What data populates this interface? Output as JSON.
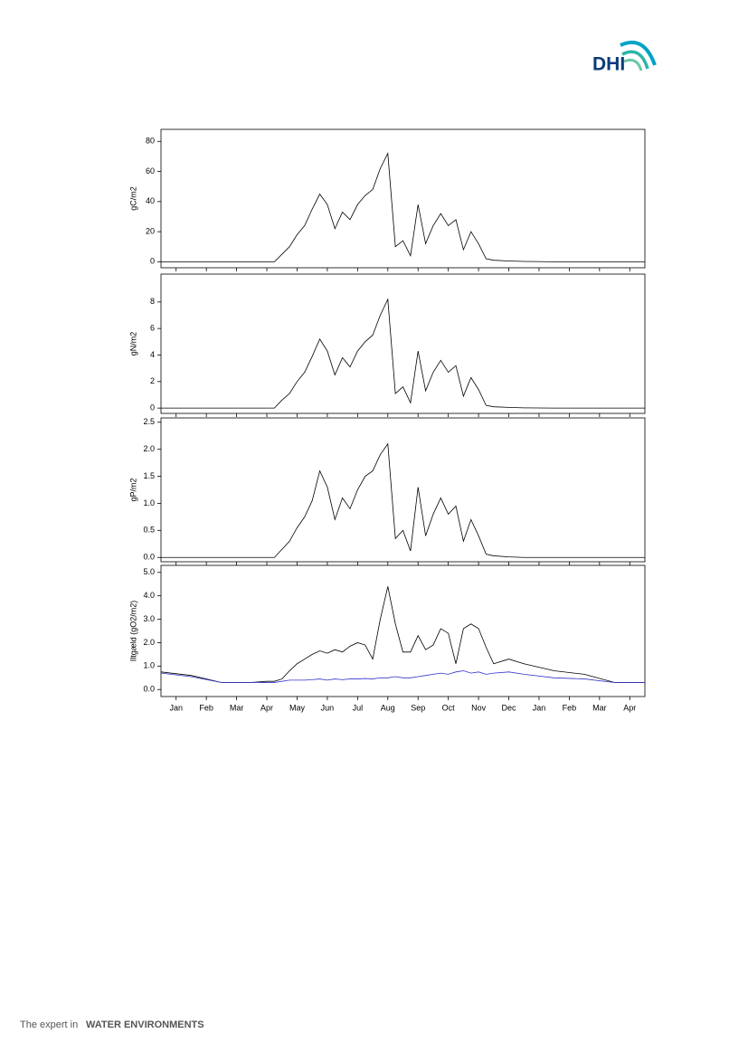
{
  "header": {
    "logo": "DHI"
  },
  "chart_data": [
    {
      "type": "line",
      "ylabel": "gC/m2",
      "color": "#000000",
      "x": [
        0,
        1,
        2,
        3,
        3.5,
        3.75,
        4,
        4.25,
        4.5,
        4.75,
        5,
        5.25,
        5.5,
        5.75,
        6,
        6.25,
        6.5,
        6.75,
        7,
        7.25,
        7.5,
        7.75,
        8,
        8.25,
        8.5,
        8.75,
        9,
        9.25,
        9.5,
        9.75,
        10,
        10.25,
        10.5,
        10.75,
        11,
        11.5,
        12,
        13,
        14,
        15,
        16
      ],
      "values": [
        0,
        0,
        0,
        0,
        0,
        0,
        5,
        10,
        18,
        24,
        35,
        45,
        38,
        22,
        33,
        28,
        38,
        44,
        48,
        62,
        72,
        10,
        14,
        4,
        38,
        12,
        24,
        32,
        24,
        28,
        8,
        20,
        12,
        2,
        1,
        0.5,
        0.2,
        0,
        0,
        0,
        0
      ],
      "xlim": [
        0,
        16
      ],
      "ylim": [
        -4,
        88
      ],
      "yticks": [
        0,
        20,
        40,
        60,
        80
      ]
    },
    {
      "type": "line",
      "ylabel": "gN/m2",
      "color": "#000000",
      "x": [
        0,
        1,
        2,
        3,
        3.5,
        3.75,
        4,
        4.25,
        4.5,
        4.75,
        5,
        5.25,
        5.5,
        5.75,
        6,
        6.25,
        6.5,
        6.75,
        7,
        7.25,
        7.5,
        7.75,
        8,
        8.25,
        8.5,
        8.75,
        9,
        9.25,
        9.5,
        9.75,
        10,
        10.25,
        10.5,
        10.75,
        11,
        11.5,
        12,
        13,
        14,
        15,
        16
      ],
      "values": [
        0,
        0,
        0,
        0,
        0,
        0,
        0.6,
        1.1,
        2.0,
        2.7,
        3.9,
        5.2,
        4.3,
        2.5,
        3.8,
        3.1,
        4.3,
        5.0,
        5.5,
        7.0,
        8.2,
        1.1,
        1.6,
        0.4,
        4.3,
        1.3,
        2.7,
        3.6,
        2.7,
        3.2,
        0.9,
        2.3,
        1.4,
        0.2,
        0.1,
        0.05,
        0.02,
        0,
        0,
        0,
        0
      ],
      "xlim": [
        0,
        16
      ],
      "ylim": [
        -0.4,
        10.1
      ],
      "yticks": [
        0,
        2,
        4,
        6,
        8
      ]
    },
    {
      "type": "line",
      "ylabel": "gP/m2",
      "color": "#000000",
      "x": [
        0,
        1,
        2,
        3,
        3.5,
        3.75,
        4,
        4.25,
        4.5,
        4.75,
        5,
        5.25,
        5.5,
        5.75,
        6,
        6.25,
        6.5,
        6.75,
        7,
        7.25,
        7.5,
        7.75,
        8,
        8.25,
        8.5,
        8.75,
        9,
        9.25,
        9.5,
        9.75,
        10,
        10.25,
        10.5,
        10.75,
        11,
        11.5,
        12,
        13,
        14,
        15,
        16
      ],
      "values": [
        0,
        0,
        0,
        0,
        0,
        0,
        0.15,
        0.3,
        0.55,
        0.75,
        1.05,
        1.6,
        1.3,
        0.7,
        1.1,
        0.9,
        1.25,
        1.5,
        1.6,
        1.9,
        2.1,
        0.35,
        0.5,
        0.12,
        1.3,
        0.4,
        0.8,
        1.1,
        0.8,
        0.95,
        0.3,
        0.7,
        0.4,
        0.06,
        0.03,
        0.01,
        0,
        0,
        0,
        0,
        0
      ],
      "xlim": [
        0,
        16
      ],
      "ylim": [
        -0.08,
        2.58
      ],
      "yticks": [
        {
          "value": 0,
          "label": "0.0"
        },
        0.5,
        {
          "value": 1,
          "label": "1.0"
        },
        1.5,
        {
          "value": 2,
          "label": "2.0"
        },
        2.5
      ]
    },
    {
      "type": "line",
      "ylabel": "Iltgæld (gO2/m2)",
      "x": [
        0,
        1,
        2,
        3,
        3.5,
        3.75,
        4,
        4.25,
        4.5,
        4.75,
        5,
        5.25,
        5.5,
        5.75,
        6,
        6.25,
        6.5,
        6.75,
        7,
        7.25,
        7.5,
        7.75,
        8,
        8.25,
        8.5,
        8.75,
        9,
        9.25,
        9.5,
        9.75,
        10,
        10.25,
        10.5,
        10.75,
        11,
        11.5,
        12,
        13,
        14,
        15,
        16
      ],
      "series": [
        {
          "color": "#000000",
          "values": [
            0.75,
            0.6,
            0.3,
            0.3,
            0.35,
            0.35,
            0.45,
            0.8,
            1.1,
            1.3,
            1.5,
            1.65,
            1.55,
            1.7,
            1.6,
            1.85,
            2.0,
            1.9,
            1.3,
            3.0,
            4.4,
            2.8,
            1.6,
            1.6,
            2.3,
            1.7,
            1.9,
            2.6,
            2.4,
            1.1,
            2.6,
            2.8,
            2.6,
            1.8,
            1.1,
            1.3,
            1.1,
            0.8,
            0.65,
            0.3,
            0.3
          ]
        },
        {
          "color": "#3333cc",
          "values": [
            0.7,
            0.55,
            0.3,
            0.3,
            0.3,
            0.3,
            0.35,
            0.4,
            0.4,
            0.4,
            0.42,
            0.45,
            0.4,
            0.45,
            0.42,
            0.45,
            0.45,
            0.47,
            0.45,
            0.5,
            0.5,
            0.55,
            0.5,
            0.5,
            0.55,
            0.6,
            0.65,
            0.7,
            0.65,
            0.75,
            0.8,
            0.7,
            0.75,
            0.65,
            0.7,
            0.75,
            0.65,
            0.5,
            0.45,
            0.3,
            0.3
          ]
        }
      ],
      "xlim": [
        0,
        16
      ],
      "ylim": [
        -0.3,
        5.3
      ],
      "yticks": [
        {
          "value": 0,
          "label": "0.0"
        },
        {
          "value": 1,
          "label": "1.0"
        },
        {
          "value": 2,
          "label": "2.0"
        },
        {
          "value": 3,
          "label": "3.0"
        },
        {
          "value": 4,
          "label": "4.0"
        },
        {
          "value": 5,
          "label": "5.0"
        }
      ],
      "xticks": [
        {
          "value": 0.5,
          "label": "Jan"
        },
        {
          "value": 1.5,
          "label": "Feb"
        },
        {
          "value": 2.5,
          "label": "Mar"
        },
        {
          "value": 3.5,
          "label": "Apr"
        },
        {
          "value": 4.5,
          "label": "May"
        },
        {
          "value": 5.5,
          "label": "Jun"
        },
        {
          "value": 6.5,
          "label": "Jul"
        },
        {
          "value": 7.5,
          "label": "Aug"
        },
        {
          "value": 8.5,
          "label": "Sep"
        },
        {
          "value": 9.5,
          "label": "Oct"
        },
        {
          "value": 10.5,
          "label": "Nov"
        },
        {
          "value": 11.5,
          "label": "Dec"
        },
        {
          "value": 12.5,
          "label": "Jan"
        },
        {
          "value": 13.5,
          "label": "Feb"
        },
        {
          "value": 14.5,
          "label": "Mar"
        },
        {
          "value": 15.5,
          "label": "Apr"
        }
      ]
    }
  ],
  "footer": {
    "prefix": "The expert in",
    "emphasis": "WATER ENVIRONMENTS"
  }
}
